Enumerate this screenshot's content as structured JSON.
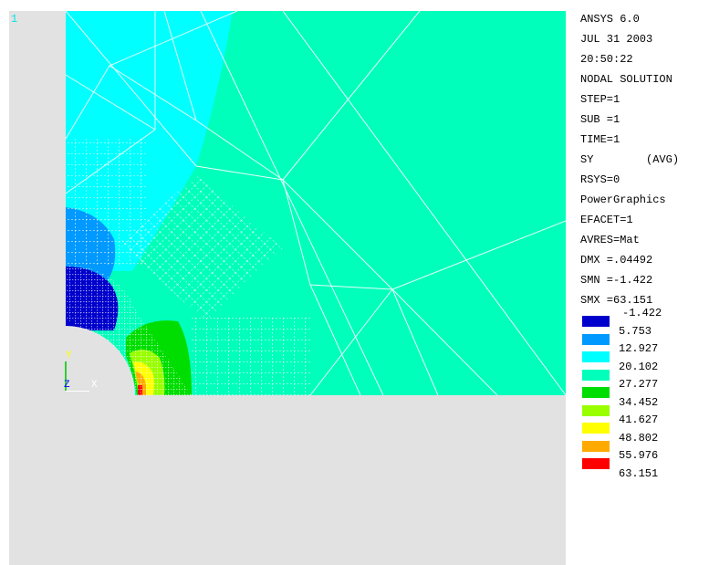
{
  "window_number": "1",
  "info_lines": [
    "ANSYS 6.0",
    "JUL 31 2003",
    "20:50:22",
    "NODAL SOLUTION",
    "STEP=1",
    "SUB =1",
    "TIME=1",
    "SY        (AVG)",
    "RSYS=0",
    "PowerGraphics",
    "EFACET=1",
    "AVRES=Mat",
    "DMX =.04492",
    "SMN =-1.422",
    "SMX =63.151"
  ],
  "legend": {
    "levels": [
      "-1.422",
      "5.753",
      "12.927",
      "20.102",
      "27.277",
      "34.452",
      "41.627",
      "48.802",
      "55.976",
      "63.151"
    ],
    "colors": [
      "#0000cc",
      "#0099ff",
      "#00ffff",
      "#00ffbb",
      "#00dd00",
      "#99ff00",
      "#ffff00",
      "#ffaa00",
      "#ff0000"
    ]
  },
  "triad": {
    "y_label": "Y",
    "z_label": "Z",
    "x_label": "X"
  },
  "colors": {
    "viewport_bg": "#e2e2e2",
    "mesh_line": "#ffffff"
  }
}
